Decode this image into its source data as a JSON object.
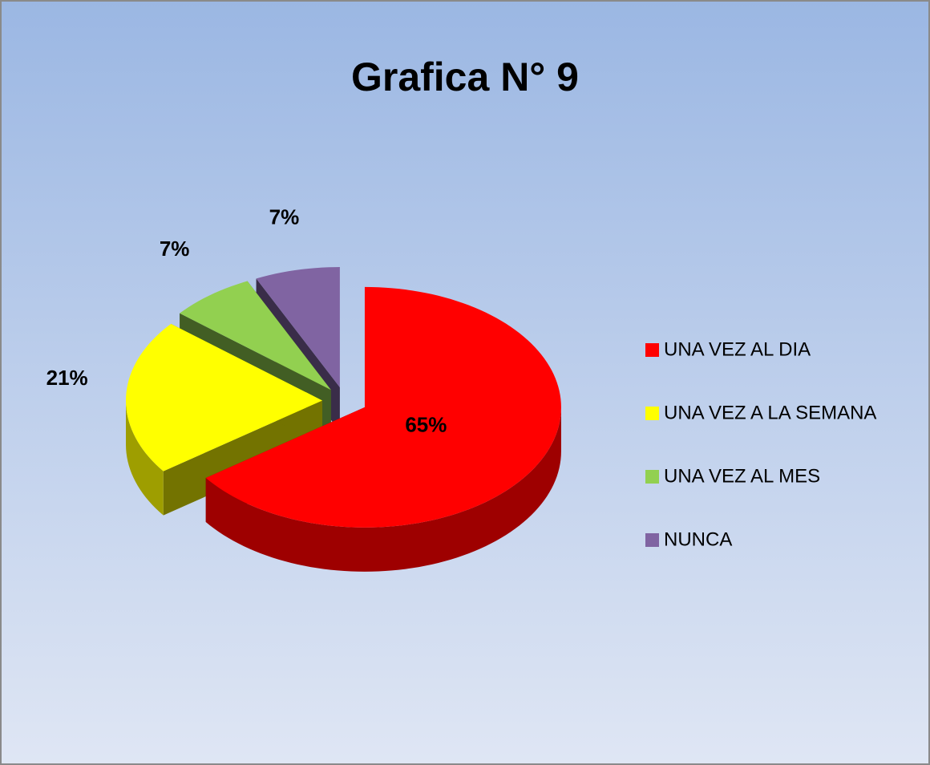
{
  "chart_data": {
    "type": "pie",
    "title": "Grafica N° 9",
    "categories": [
      "UNA VEZ AL DIA",
      "UNA VEZ A LA SEMANA",
      "UNA VEZ AL MES",
      "NUNCA"
    ],
    "values": [
      65,
      21,
      7,
      7
    ],
    "value_labels": [
      "65%",
      "21%",
      "7%",
      "7%"
    ],
    "colors": [
      "#ff0000",
      "#ffff00",
      "#92d050",
      "#8064a2"
    ],
    "legend": "right"
  }
}
